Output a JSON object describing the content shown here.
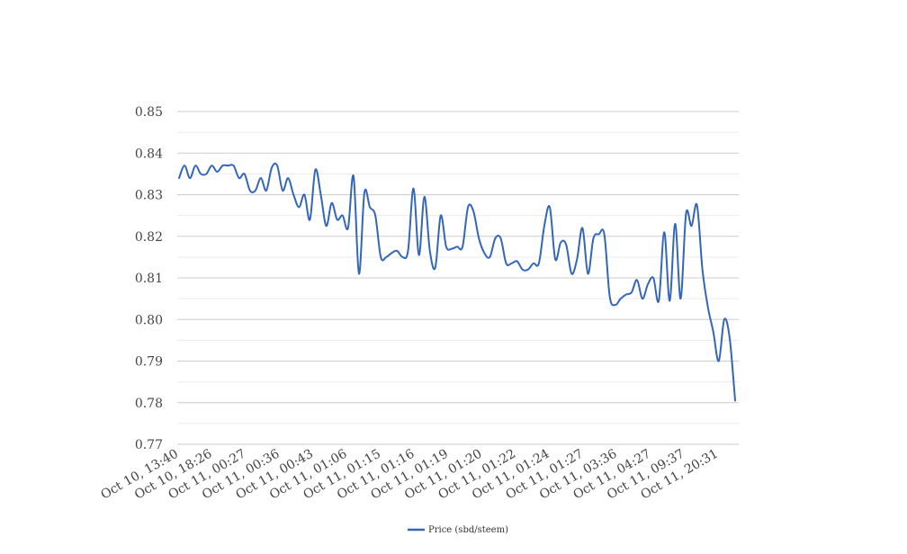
{
  "chart_data": {
    "type": "line",
    "title": "",
    "xlabel": "",
    "ylabel": "",
    "ylim": [
      0.77,
      0.85
    ],
    "y_ticks": [
      "0.77",
      "0.78",
      "0.79",
      "0.80",
      "0.81",
      "0.82",
      "0.83",
      "0.84",
      "0.85"
    ],
    "x_tick_labels": [
      "Oct 10, 13:40",
      "Oct 10, 18:26",
      "Oct 11, 00:27",
      "Oct 11, 00:36",
      "Oct 11, 00:43",
      "Oct 11, 01:06",
      "Oct 11, 01:15",
      "Oct 11, 01:16",
      "Oct 11, 01:19",
      "Oct 11, 01:20",
      "Oct 11, 01:22",
      "Oct 11, 01:24",
      "Oct 11, 01:27",
      "Oct 11, 03:36",
      "Oct 11, 04:27",
      "Oct 11, 09:37",
      "Oct 11, 20:31"
    ],
    "grid": true,
    "minor_grid": true,
    "legend_position": "bottom",
    "series": [
      {
        "name": "Price (sbd/steem)",
        "color": "#3366bb",
        "values": [
          0.834,
          0.837,
          0.834,
          0.837,
          0.835,
          0.835,
          0.837,
          0.8355,
          0.837,
          0.837,
          0.837,
          0.834,
          0.835,
          0.831,
          0.831,
          0.834,
          0.831,
          0.8365,
          0.837,
          0.831,
          0.834,
          0.83,
          0.827,
          0.83,
          0.824,
          0.836,
          0.83,
          0.8225,
          0.828,
          0.824,
          0.825,
          0.822,
          0.8345,
          0.811,
          0.8305,
          0.827,
          0.825,
          0.815,
          0.815,
          0.816,
          0.8165,
          0.815,
          0.8165,
          0.8315,
          0.8155,
          0.8295,
          0.8165,
          0.8125,
          0.825,
          0.8175,
          0.817,
          0.8175,
          0.8175,
          0.827,
          0.826,
          0.8195,
          0.816,
          0.815,
          0.8195,
          0.8195,
          0.8135,
          0.8135,
          0.814,
          0.812,
          0.812,
          0.8135,
          0.8135,
          0.8225,
          0.827,
          0.8145,
          0.8185,
          0.818,
          0.811,
          0.8145,
          0.822,
          0.811,
          0.8195,
          0.8205,
          0.8205,
          0.8055,
          0.8035,
          0.805,
          0.806,
          0.8065,
          0.8095,
          0.805,
          0.8085,
          0.81,
          0.8045,
          0.821,
          0.8045,
          0.823,
          0.805,
          0.8255,
          0.8225,
          0.8275,
          0.812,
          0.803,
          0.797,
          0.79,
          0.8,
          0.7955,
          0.7805
        ]
      }
    ]
  }
}
